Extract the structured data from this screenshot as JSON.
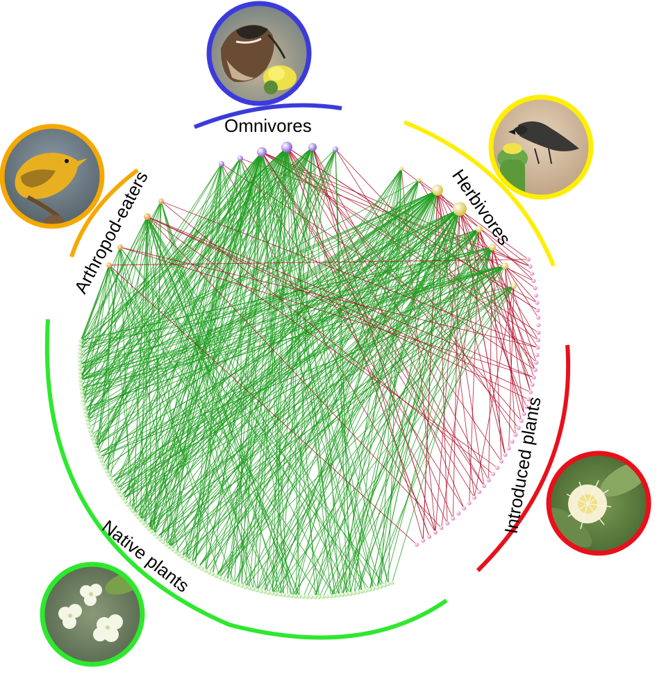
{
  "groups": {
    "omnivores": {
      "label": "Omnivores",
      "color": "#3b3bdb"
    },
    "herbivores": {
      "label": "Herbivores",
      "color": "#ffee00"
    },
    "arthropod_eaters": {
      "label": "Arthropod-eaters",
      "color": "#f5a800"
    },
    "introduced_plants": {
      "label": "Introduced plants",
      "color": "#e8101a"
    },
    "native_plants": {
      "label": "Native plants",
      "color": "#2ee82e"
    }
  },
  "link_colors": {
    "native": "#1f9e1f",
    "introduced": "#b0102a"
  },
  "photos": {
    "omnivores": "omnivore-bird-photo",
    "herbivores": "herbivore-finch-photo",
    "arthropod_eaters": "yellow-warbler-photo",
    "introduced_plants": "introduced-flower-photo",
    "native_plants": "native-flower-photo"
  }
}
